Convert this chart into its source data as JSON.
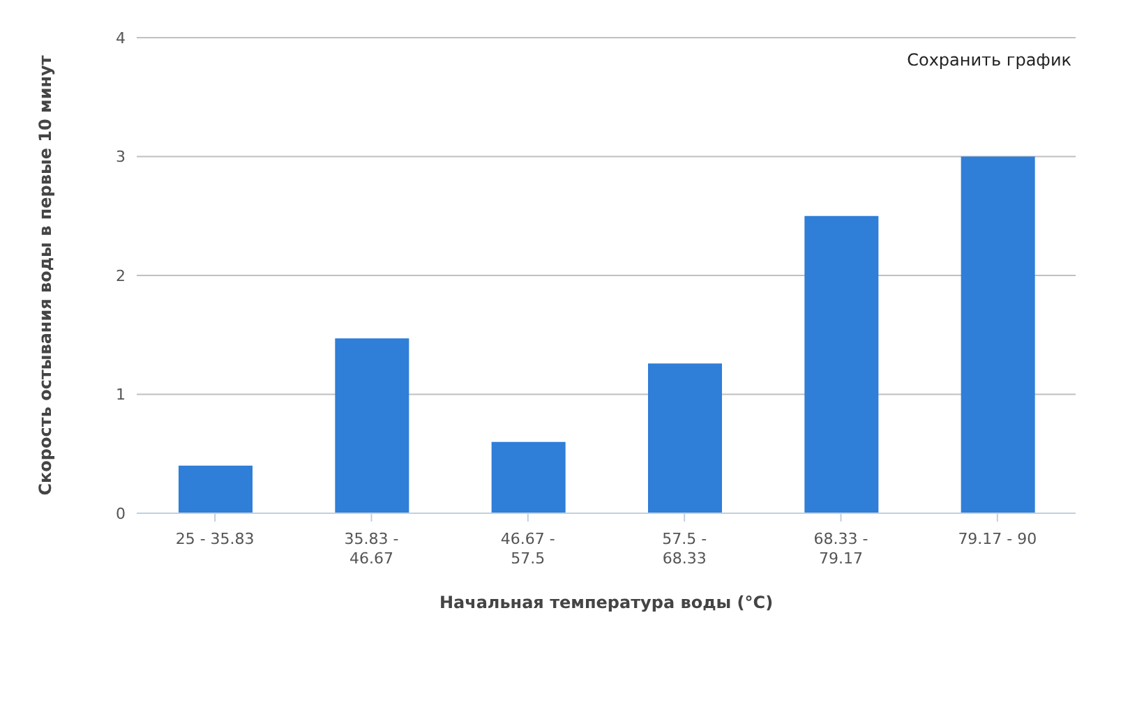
{
  "chart_data": {
    "type": "bar",
    "xlabel": "Начальная температура воды (°C)",
    "ylabel": "Скорость остывания воды в первые 10 минут",
    "categories": [
      "25 - 35.83",
      "35.83 - 46.67",
      "46.67 - 57.5",
      "57.5 - 68.33",
      "68.33 - 79.17",
      "79.17 - 90"
    ],
    "values": [
      0.4,
      1.47,
      0.6,
      1.26,
      2.5,
      3.0
    ],
    "color": "#2f7ed8",
    "ylim": [
      0,
      4
    ],
    "yticks": [
      0,
      1,
      2,
      3,
      4
    ],
    "grid": "y",
    "annotations": [
      "Сохранить график"
    ]
  }
}
